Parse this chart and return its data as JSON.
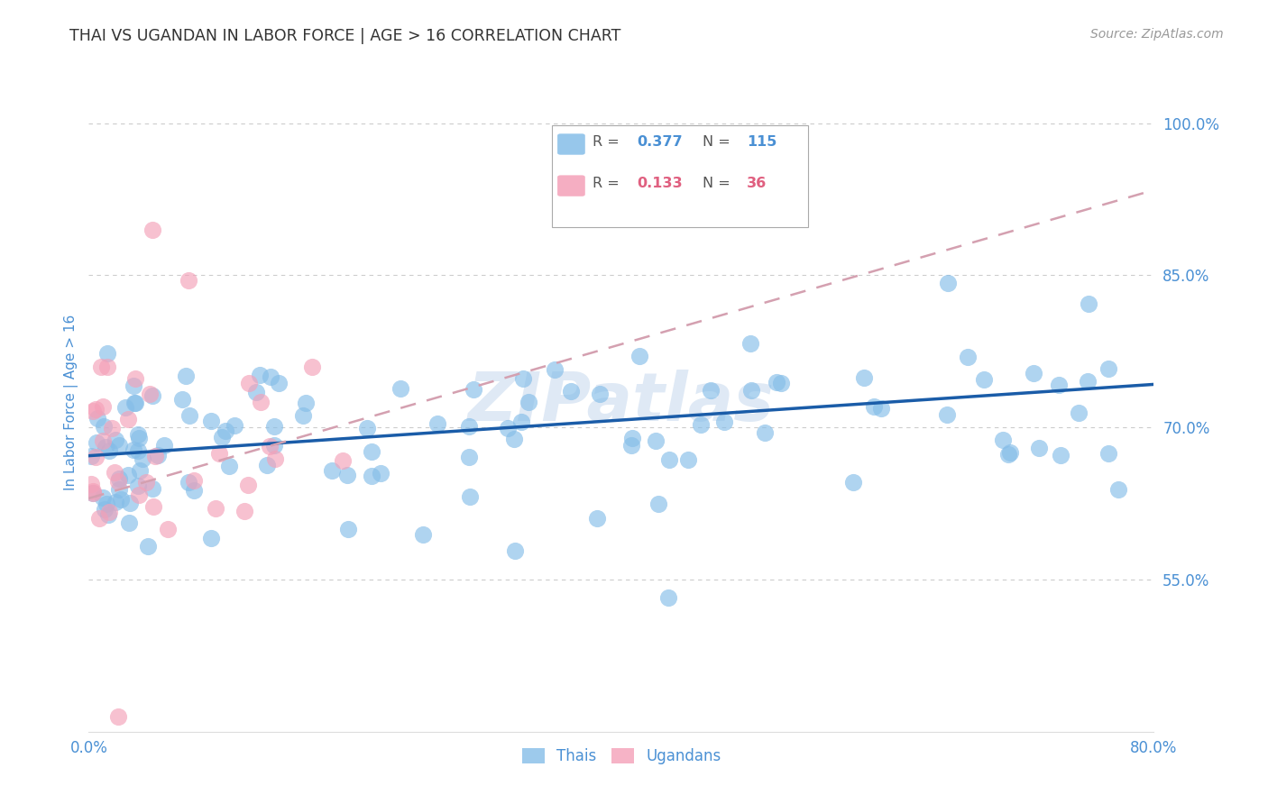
{
  "title": "THAI VS UGANDAN IN LABOR FORCE | AGE > 16 CORRELATION CHART",
  "source": "Source: ZipAtlas.com",
  "ylabel": "In Labor Force | Age > 16",
  "x_min": 0.0,
  "x_max": 0.8,
  "y_min": 0.4,
  "y_max": 1.05,
  "yticks": [
    0.55,
    0.7,
    0.85,
    1.0
  ],
  "ytick_labels": [
    "55.0%",
    "70.0%",
    "85.0%",
    "100.0%"
  ],
  "xticks": [
    0.0,
    0.1,
    0.2,
    0.3,
    0.4,
    0.5,
    0.6,
    0.7,
    0.8
  ],
  "xtick_labels": [
    "0.0%",
    "",
    "",
    "",
    "",
    "",
    "",
    "",
    "80.0%"
  ],
  "thai_R": 0.377,
  "thai_N": 115,
  "ugandan_R": 0.133,
  "ugandan_N": 36,
  "thai_color": "#85bde8",
  "ugandan_color": "#f4a0b8",
  "thai_line_color": "#1a5ca8",
  "ugandan_line_color": "#d4a0b0",
  "watermark": "ZIPatlas",
  "watermark_color": "#c5d8ee",
  "axis_label_color": "#4a90d4",
  "tick_label_color": "#4a90d4",
  "legend_color_thai": "#4a90d4",
  "legend_color_ugandan": "#e06080",
  "background_color": "#ffffff",
  "grid_color": "#cccccc",
  "title_color": "#333333",
  "source_color": "#999999"
}
